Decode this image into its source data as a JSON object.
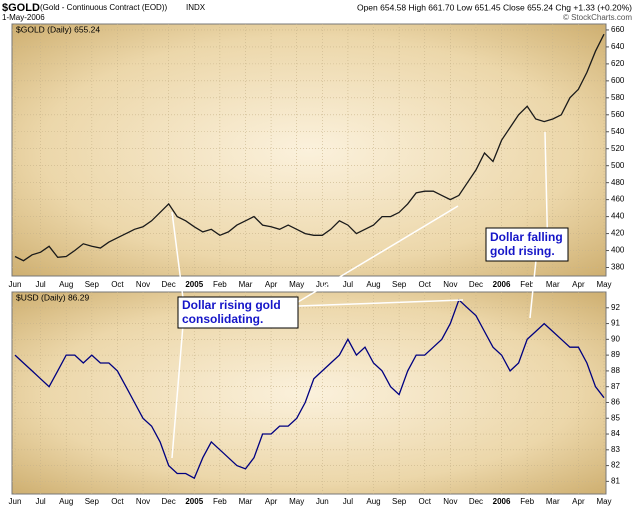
{
  "header": {
    "symbol": "$GOLD",
    "description": "(Gold - Continuous Contract (EOD))",
    "exchange": "INDX",
    "date": "1-May-2006",
    "quote": "Open 654.58 High 661.70 Low 651.45 Close 655.24 Chg +1.33 (+0.20%)",
    "credit": "© StockCharts.com"
  },
  "annotations": [
    {
      "lines": [
        "Dollar rising gold",
        "consolidating."
      ]
    },
    {
      "lines": [
        "Dollar falling",
        "gold rising."
      ]
    }
  ],
  "chart_data": [
    {
      "type": "line",
      "title": "$GOLD (Daily) 655.24",
      "color": "#1a1a1a",
      "grid": true,
      "ylim": [
        370,
        667
      ],
      "yticks": [
        380,
        400,
        420,
        440,
        460,
        480,
        500,
        520,
        540,
        560,
        580,
        600,
        620,
        640,
        660
      ],
      "categories": [
        "Jun",
        null,
        null,
        "Jul",
        null,
        null,
        "Aug",
        null,
        null,
        "Sep",
        null,
        null,
        "Oct",
        null,
        null,
        "Nov",
        null,
        null,
        "Dec",
        null,
        null,
        "2005",
        null,
        null,
        "Feb",
        null,
        null,
        "Mar",
        null,
        null,
        "Apr",
        null,
        null,
        "May",
        null,
        null,
        "Jun",
        null,
        null,
        "Jul",
        null,
        null,
        "Aug",
        null,
        null,
        "Sep",
        null,
        null,
        "Oct",
        null,
        null,
        "Nov",
        null,
        null,
        "Dec",
        null,
        null,
        "2006",
        null,
        null,
        "Feb",
        null,
        null,
        "Mar",
        null,
        null,
        "Apr",
        null,
        null,
        "May"
      ],
      "values": [
        393,
        388,
        395,
        398,
        405,
        392,
        393,
        400,
        408,
        405,
        403,
        410,
        415,
        420,
        425,
        428,
        435,
        445,
        455,
        440,
        435,
        428,
        422,
        425,
        418,
        422,
        430,
        435,
        440,
        430,
        428,
        425,
        430,
        425,
        420,
        418,
        418,
        425,
        435,
        430,
        420,
        425,
        430,
        440,
        440,
        445,
        455,
        468,
        470,
        470,
        465,
        460,
        465,
        480,
        495,
        515,
        505,
        530,
        545,
        560,
        570,
        555,
        552,
        555,
        560,
        580,
        590,
        610,
        635,
        655
      ]
    },
    {
      "type": "line",
      "title": "$USD (Daily) 86.29",
      "color": "#000080",
      "grid": true,
      "ylim": [
        80.2,
        93
      ],
      "yticks": [
        81,
        82,
        83,
        84,
        85,
        86,
        87,
        88,
        89,
        90,
        91,
        92
      ],
      "categories": [
        "Jun",
        null,
        null,
        "Jul",
        null,
        null,
        "Aug",
        null,
        null,
        "Sep",
        null,
        null,
        "Oct",
        null,
        null,
        "Nov",
        null,
        null,
        "Dec",
        null,
        null,
        "2005",
        null,
        null,
        "Feb",
        null,
        null,
        "Mar",
        null,
        null,
        "Apr",
        null,
        null,
        "May",
        null,
        null,
        "Jun",
        null,
        null,
        "Jul",
        null,
        null,
        "Aug",
        null,
        null,
        "Sep",
        null,
        null,
        "Oct",
        null,
        null,
        "Nov",
        null,
        null,
        "Dec",
        null,
        null,
        "2006",
        null,
        null,
        "Feb",
        null,
        null,
        "Mar",
        null,
        null,
        "Apr",
        null,
        null,
        "May"
      ],
      "values": [
        89,
        88.5,
        88,
        87.5,
        87,
        88,
        89,
        89,
        88.5,
        89,
        88.5,
        88.5,
        88,
        87,
        86,
        85,
        84.5,
        83.5,
        82,
        81.5,
        81.5,
        81.2,
        82.5,
        83.5,
        83,
        82.5,
        82,
        81.8,
        82.5,
        84,
        84,
        84.5,
        84.5,
        85,
        86,
        87.5,
        88,
        88.5,
        89,
        90,
        89,
        89.5,
        88.5,
        88,
        87,
        86.5,
        88,
        89,
        89,
        89.5,
        90,
        91,
        92.5,
        92,
        91.5,
        90.5,
        89.5,
        89,
        88,
        88.5,
        90,
        90.5,
        91,
        90.5,
        90,
        89.5,
        89.5,
        88.5,
        87,
        86.3
      ]
    }
  ]
}
